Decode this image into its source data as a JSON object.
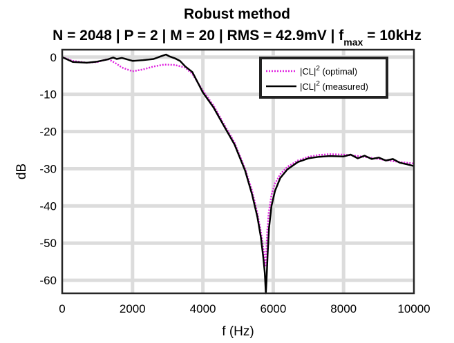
{
  "chart_data": {
    "type": "line",
    "title": "Robust method",
    "subtitle": {
      "prefix": "N = 2048 | P = 2 | M = 20 | RMS = 42.9mV | f",
      "subscript": "max",
      "suffix": " = 10kHz"
    },
    "xlabel": "f (Hz)",
    "ylabel": "dB",
    "xlim": [
      0,
      10000
    ],
    "ylim": [
      -63.5,
      2
    ],
    "xticks": [
      0,
      2000,
      4000,
      6000,
      8000,
      10000
    ],
    "yticks": [
      0,
      -10,
      -20,
      -30,
      -40,
      -50,
      -60
    ],
    "grid": true,
    "legend_position": "top-right",
    "series": [
      {
        "name": "|CL|",
        "name_sup": "2",
        "name_suffix": " (optimal)",
        "color": "#e020e0",
        "style": "dotted",
        "x": [
          0,
          300,
          700,
          1000,
          1300,
          1500,
          1700,
          2000,
          2300,
          2600,
          2900,
          3200,
          3500,
          3700,
          4000,
          4300,
          4600,
          4900,
          5200,
          5400,
          5550,
          5650,
          5720,
          5760,
          5780,
          5800,
          5830,
          5870,
          5950,
          6050,
          6200,
          6400,
          6700,
          7000,
          7300,
          7600,
          8000,
          8400,
          8800,
          9200,
          9600,
          10000
        ],
        "y": [
          0,
          -1,
          -1.5,
          -1.3,
          -0.5,
          -1.5,
          -2.8,
          -3.8,
          -3.3,
          -2.5,
          -2.0,
          -2.1,
          -2.8,
          -4.5,
          -9,
          -13,
          -18,
          -23,
          -30,
          -36,
          -42,
          -47,
          -51.5,
          -54,
          -56,
          -53,
          -47,
          -42,
          -37,
          -34,
          -31.5,
          -29.5,
          -27.8,
          -26.8,
          -26.3,
          -26.1,
          -26.2,
          -26.6,
          -27.1,
          -27.7,
          -28.2,
          -28.6
        ]
      },
      {
        "name": "|CL|",
        "name_sup": "2",
        "name_suffix": " (measured)",
        "color": "#000000",
        "style": "solid",
        "x": [
          0,
          300,
          700,
          1000,
          1300,
          1450,
          1550,
          1700,
          2000,
          2300,
          2600,
          2800,
          2950,
          3050,
          3200,
          3350,
          3500,
          3700,
          4000,
          4300,
          4600,
          4900,
          5200,
          5400,
          5550,
          5650,
          5720,
          5760,
          5790,
          5810,
          5840,
          5880,
          5950,
          6050,
          6200,
          6400,
          6700,
          7000,
          7300,
          7600,
          8000,
          8200,
          8400,
          8600,
          8800,
          9000,
          9200,
          9400,
          9600,
          9800,
          10000
        ],
        "y": [
          0,
          -1.3,
          -1.5,
          -1.2,
          -0.6,
          -0.1,
          -0.5,
          -0.2,
          -1.0,
          -0.8,
          -0.5,
          0.2,
          0.7,
          0.2,
          -0.3,
          -1.0,
          -2.5,
          -4.0,
          -9.5,
          -13.5,
          -18.5,
          -23.5,
          -30.5,
          -37,
          -43,
          -48.5,
          -54,
          -58,
          -63.5,
          -60,
          -53,
          -46,
          -40,
          -36,
          -32.5,
          -30.2,
          -28.2,
          -27.2,
          -26.8,
          -26.6,
          -26.7,
          -26.2,
          -27.2,
          -26.5,
          -27.4,
          -27.0,
          -27.8,
          -27.4,
          -28.4,
          -28.8,
          -29.3
        ]
      }
    ]
  }
}
